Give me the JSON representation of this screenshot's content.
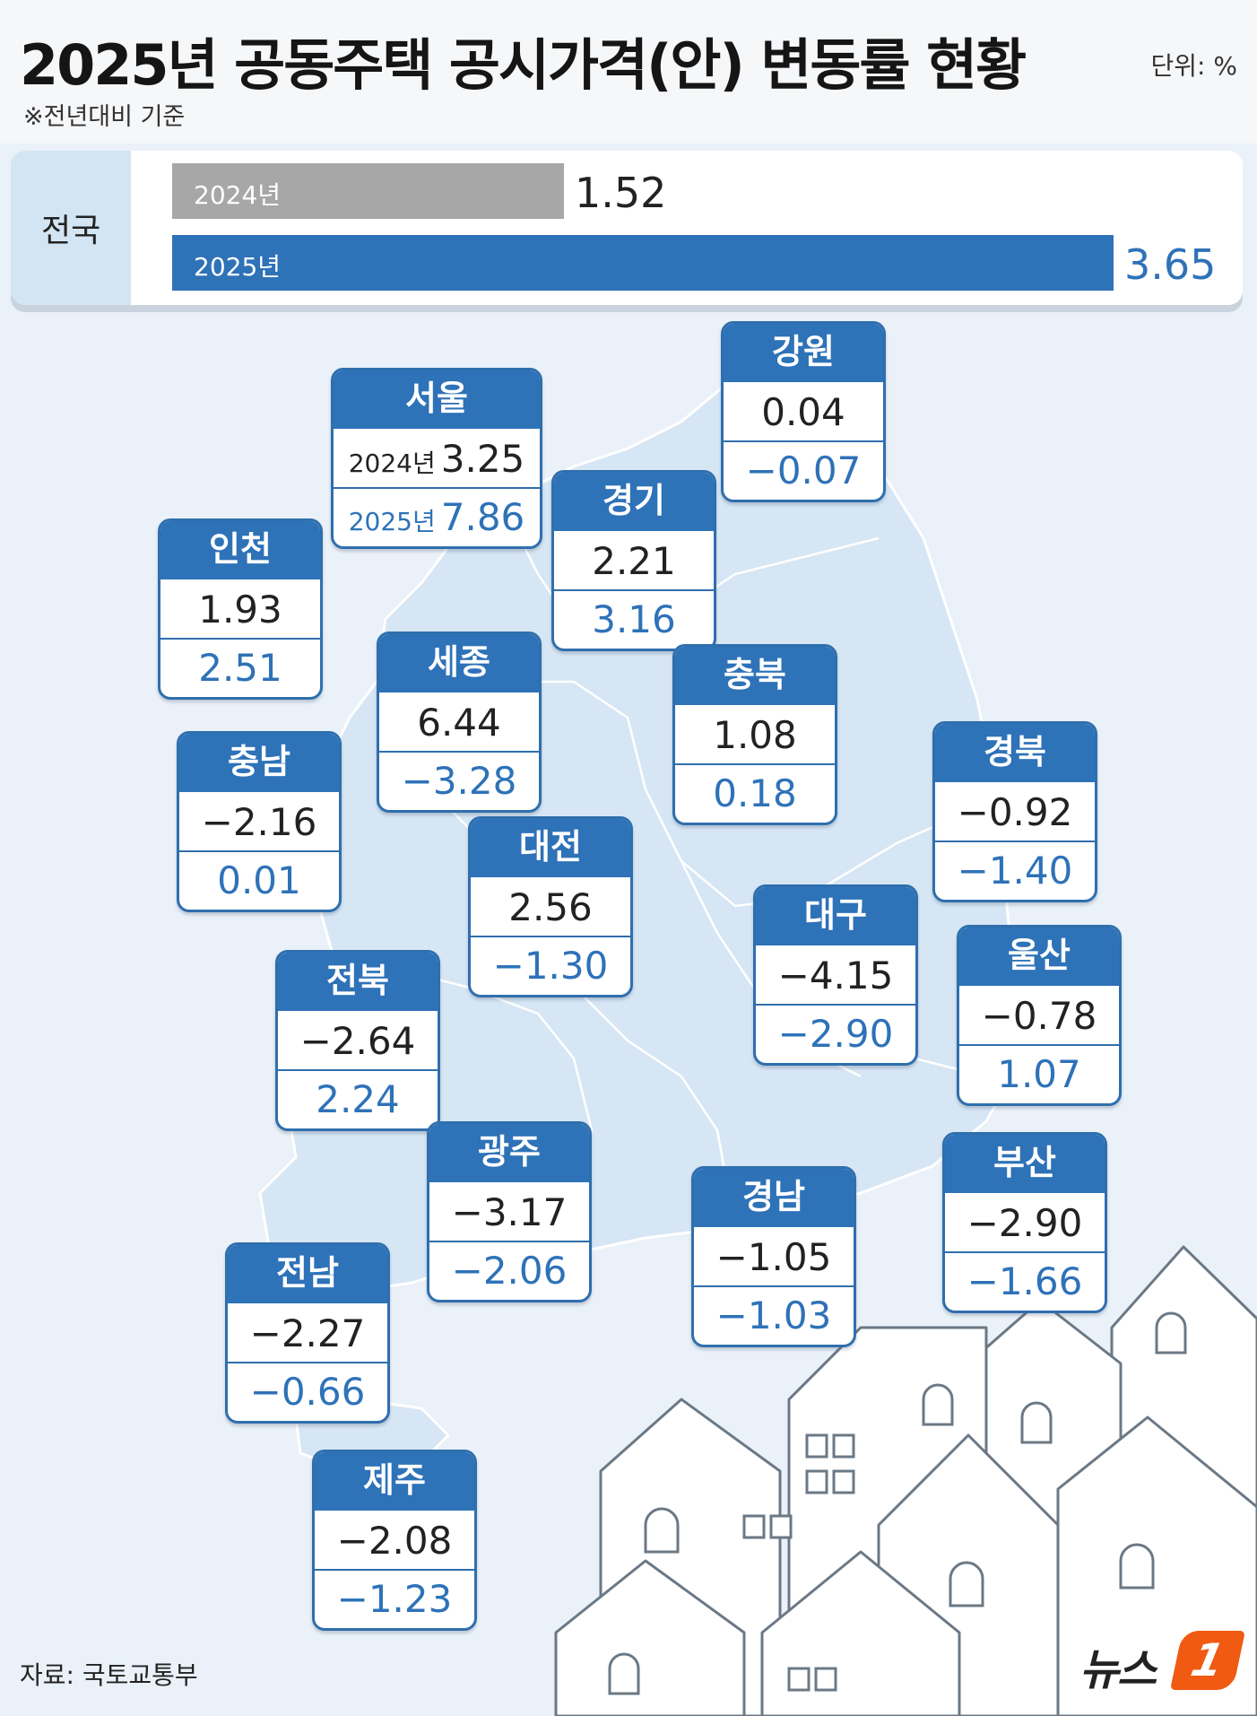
{
  "title": "2025년 공동주택 공시가격(안) 변동률 현황",
  "unit": "단위: %",
  "note": "※전년대비 기준",
  "source": "자료: 국토교통부",
  "logo": {
    "text": "뉴스",
    "mark": "1"
  },
  "colors": {
    "accent": "#2e72b8",
    "bar_2024": "#a7a7a7",
    "map": "#d6e6f4",
    "background": "#eaf1f8"
  },
  "chart_data": {
    "type": "bar",
    "national": {
      "label": "전국",
      "series": [
        {
          "name": "2024년",
          "value": 1.52
        },
        {
          "name": "2025년",
          "value": 3.65
        }
      ]
    },
    "regions": [
      {
        "name": "강원",
        "v2024": "0.04",
        "v2025": "−0.07"
      },
      {
        "name": "서울",
        "v2024": "3.25",
        "v2025": "7.86",
        "y2024": "2024년",
        "y2025": "2025년"
      },
      {
        "name": "경기",
        "v2024": "2.21",
        "v2025": "3.16"
      },
      {
        "name": "인천",
        "v2024": "1.93",
        "v2025": "2.51"
      },
      {
        "name": "세종",
        "v2024": "6.44",
        "v2025": "−3.28"
      },
      {
        "name": "충북",
        "v2024": "1.08",
        "v2025": "0.18"
      },
      {
        "name": "충남",
        "v2024": "−2.16",
        "v2025": "0.01"
      },
      {
        "name": "경북",
        "v2024": "−0.92",
        "v2025": "−1.40"
      },
      {
        "name": "대전",
        "v2024": "2.56",
        "v2025": "−1.30"
      },
      {
        "name": "대구",
        "v2024": "−4.15",
        "v2025": "−2.90"
      },
      {
        "name": "전북",
        "v2024": "−2.64",
        "v2025": "2.24"
      },
      {
        "name": "울산",
        "v2024": "−0.78",
        "v2025": "1.07"
      },
      {
        "name": "광주",
        "v2024": "−3.17",
        "v2025": "−2.06"
      },
      {
        "name": "경남",
        "v2024": "−1.05",
        "v2025": "−1.03"
      },
      {
        "name": "부산",
        "v2024": "−2.90",
        "v2025": "−1.66"
      },
      {
        "name": "전남",
        "v2024": "−2.27",
        "v2025": "−0.66"
      },
      {
        "name": "제주",
        "v2024": "−2.08",
        "v2025": "−1.23"
      }
    ]
  }
}
